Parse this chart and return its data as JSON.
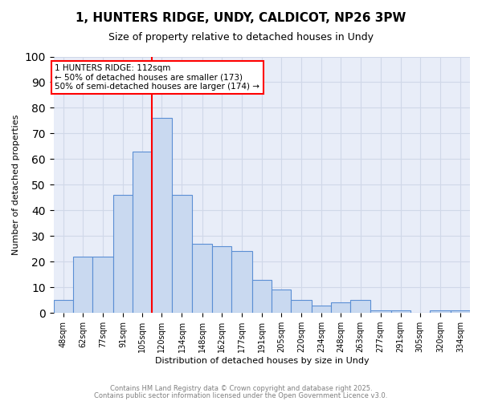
{
  "title1": "1, HUNTERS RIDGE, UNDY, CALDICOT, NP26 3PW",
  "title2": "Size of property relative to detached houses in Undy",
  "xlabel": "Distribution of detached houses by size in Undy",
  "ylabel": "Number of detached properties",
  "bin_labels": [
    "48sqm",
    "62sqm",
    "77sqm",
    "91sqm",
    "105sqm",
    "120sqm",
    "134sqm",
    "148sqm",
    "162sqm",
    "177sqm",
    "191sqm",
    "205sqm",
    "220sqm",
    "234sqm",
    "248sqm",
    "263sqm",
    "277sqm",
    "291sqm",
    "305sqm",
    "320sqm",
    "334sqm"
  ],
  "bar_values": [
    5,
    22,
    22,
    46,
    63,
    76,
    46,
    27,
    26,
    24,
    13,
    9,
    5,
    3,
    4,
    5,
    1,
    1,
    0,
    1,
    1
  ],
  "bar_color": "#c9d9f0",
  "bar_edge_color": "#5b8fd4",
  "red_line_x": 112,
  "bin_edges_numeric": [
    41,
    55,
    69,
    84,
    98,
    112,
    126,
    141,
    155,
    169,
    184,
    198,
    212,
    227,
    241,
    255,
    269,
    284,
    298,
    312,
    327,
    341
  ],
  "annotation_text": "1 HUNTERS RIDGE: 112sqm\n← 50% of detached houses are smaller (173)\n50% of semi-detached houses are larger (174) →",
  "annotation_box_color": "white",
  "annotation_box_edge_color": "red",
  "ylim": [
    0,
    100
  ],
  "yticks": [
    0,
    10,
    20,
    30,
    40,
    50,
    60,
    70,
    80,
    90,
    100
  ],
  "grid_color": "#d0d8e8",
  "background_color": "#e8edf8",
  "footer_text1": "Contains HM Land Registry data © Crown copyright and database right 2025.",
  "footer_text2": "Contains public sector information licensed under the Open Government Licence v3.0."
}
